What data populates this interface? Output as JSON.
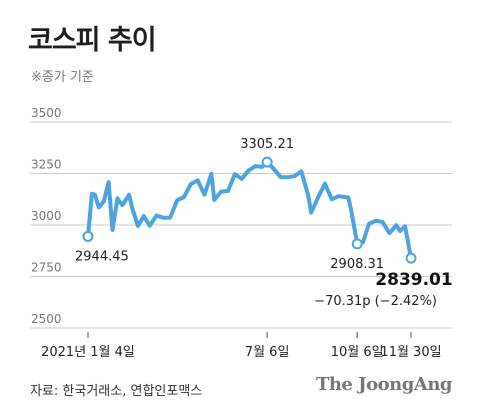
{
  "header": {
    "title": "코스피 추이",
    "note": "※종가 기준"
  },
  "footer": {
    "source": "자료: 한국거래소, 연합인포맥스",
    "brand": "The JoongAng"
  },
  "colors": {
    "line": "#4da3e0",
    "grid": "#cccccc",
    "marker_fill": "#ffffff"
  },
  "chart_data": {
    "type": "line",
    "title": "코스피 추이",
    "xlabel": "",
    "ylabel": "",
    "ylim": [
      2500,
      3500
    ],
    "yticks": [
      "3500",
      "3250",
      "3000",
      "2750",
      "2500"
    ],
    "ytick_values": [
      3500,
      3250,
      3000,
      2750,
      2500
    ],
    "x_range": [
      "2021-01-04",
      "2021-11-30"
    ],
    "xticks": [
      {
        "date": "2021-01-04",
        "label": "2021년 1월 4일"
      },
      {
        "date": "2021-07-06",
        "label": "7월 6일"
      },
      {
        "date": "2021-10-06",
        "label": "10월 6일"
      },
      {
        "date": "2021-11-30",
        "label": "11월 30일"
      }
    ],
    "grid": true,
    "series": [
      {
        "x": [
          "2021-01-04",
          "2021-01-08",
          "2021-01-11",
          "2021-01-15",
          "2021-01-20",
          "2021-01-25",
          "2021-01-29",
          "2021-02-03",
          "2021-02-08",
          "2021-02-15",
          "2021-02-18",
          "2021-02-24",
          "2021-03-02",
          "2021-03-08",
          "2021-03-15",
          "2021-03-22",
          "2021-03-29",
          "2021-04-05",
          "2021-04-12",
          "2021-04-19",
          "2021-04-26",
          "2021-05-03",
          "2021-05-10",
          "2021-05-13",
          "2021-05-20",
          "2021-05-27",
          "2021-06-03",
          "2021-06-10",
          "2021-06-17",
          "2021-06-24",
          "2021-07-01",
          "2021-07-06",
          "2021-07-13",
          "2021-07-20",
          "2021-07-27",
          "2021-08-03",
          "2021-08-10",
          "2021-08-17",
          "2021-08-20",
          "2021-08-27",
          "2021-09-03",
          "2021-09-10",
          "2021-09-17",
          "2021-09-27",
          "2021-09-30",
          "2021-10-06",
          "2021-10-12",
          "2021-10-18",
          "2021-10-25",
          "2021-11-01",
          "2021-11-08",
          "2021-11-15",
          "2021-11-19",
          "2021-11-24",
          "2021-11-30"
        ],
        "values": [
          2944.45,
          3152,
          3148,
          3085,
          3114,
          3208,
          2976,
          3129,
          3096,
          3147,
          3086,
          2995,
          3043,
          2996,
          3046,
          3035,
          3036,
          3120,
          3135,
          3198,
          3217,
          3147,
          3249,
          3122,
          3162,
          3165,
          3247,
          3224,
          3264,
          3286,
          3282,
          3305.21,
          3271,
          3232,
          3232,
          3237,
          3260,
          3143,
          3060,
          3133,
          3201,
          3125,
          3140,
          3133,
          3068,
          2908.31,
          2916,
          3006,
          3021,
          3014,
          2960,
          2999,
          2971,
          2994,
          2839.01
        ]
      }
    ],
    "annotations": [
      {
        "date": "2021-01-04",
        "value": 2944.45,
        "label": "2944.45"
      },
      {
        "date": "2021-07-06",
        "value": 3305.21,
        "label": "3305.21"
      },
      {
        "date": "2021-10-06",
        "value": 2908.31,
        "label": "2908.31"
      },
      {
        "date": "2021-11-30",
        "value": 2839.01,
        "label": "2839.01",
        "sublabel": "−70.31p (−2.42%)"
      }
    ]
  }
}
